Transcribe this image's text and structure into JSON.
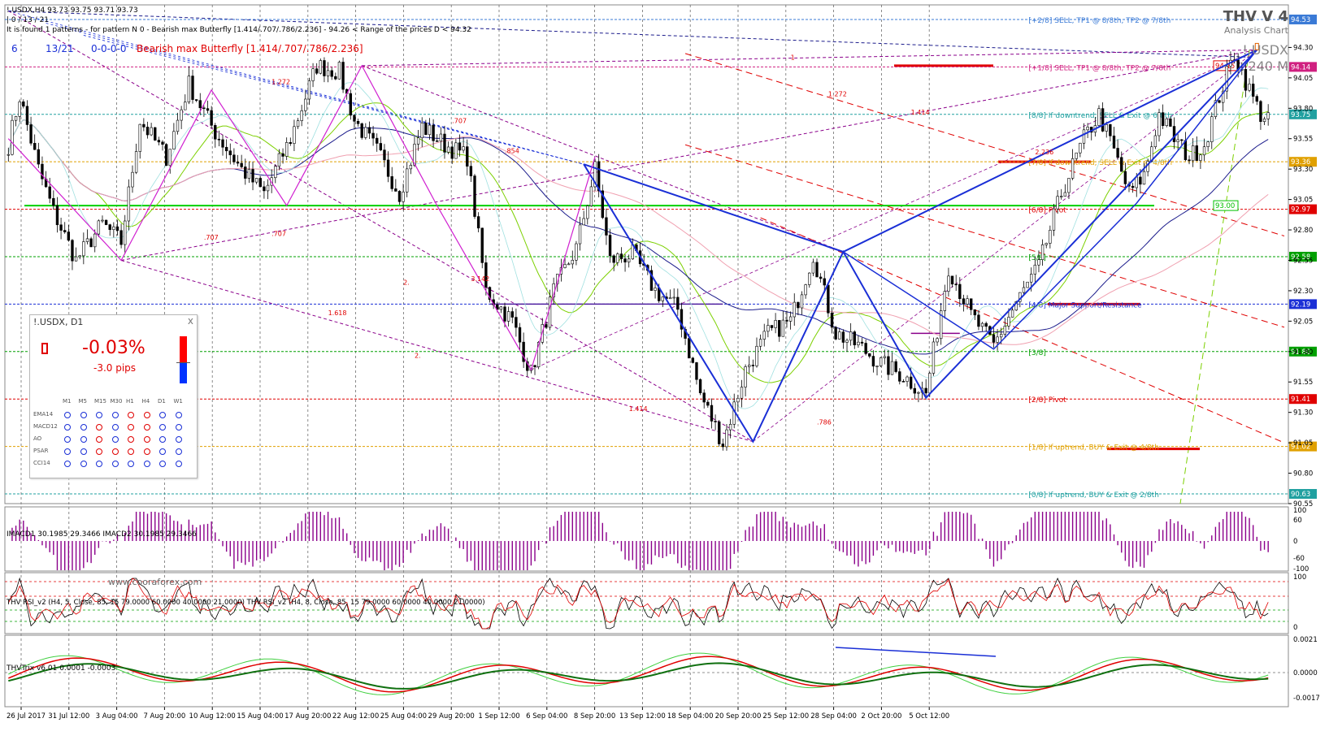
{
  "colors": {
    "grid": "#6e6e6e",
    "candle": "#000000",
    "fib_blue": "#1a2fd6",
    "green": "#00d000",
    "purple_ma": "#1c1c8c",
    "red": "#e00000",
    "pink": "#e070a0",
    "orange": "#e0a000",
    "teal": "#20a0a0",
    "macd": "#8b008b"
  },
  "header": {
    "line1": "!.USDX,H4  93.73 93.75 93.71 93.73",
    "line2": " | 0 / 13 / 21",
    "line3": "It is found 1 patterns  -  for pattern N 0 - Bearish max Butterfly [1.414/.707/.786/2.236] - 94.26 < Range of the prices D < 94.32",
    "line4_a": "6",
    "line4_b": "13/21",
    "line4_c": "0-0-0-0",
    "line4_d": "Bearish max Butterfly [1.414/.707/.786/2.236]"
  },
  "branding": {
    "title": "THV V 4",
    "subtitle": "Analysis Chart",
    "symbol": "!.USDX",
    "timeframe": "240 M",
    "watermark": "www.cooraforex.com"
  },
  "chart_data": {
    "type": "candlestick",
    "symbol": "!.USDX",
    "timeframe": "H4",
    "ylim": [
      90.55,
      94.65
    ],
    "y_ticks": [
      94.3,
      94.05,
      93.8,
      93.55,
      93.3,
      93.05,
      92.8,
      92.55,
      92.3,
      92.05,
      91.8,
      91.55,
      91.3,
      91.05,
      90.8,
      90.55
    ],
    "x_tick_labels": [
      "26 Jul 2017",
      "31 Jul 12:00",
      "3 Aug 04:00",
      "7 Aug 20:00",
      "10 Aug 12:00",
      "15 Aug 04:00",
      "17 Aug 20:00",
      "22 Aug 12:00",
      "25 Aug 04:00",
      "29 Aug 20:00",
      "1 Sep 12:00",
      "6 Sep 04:00",
      "8 Sep 20:00",
      "13 Sep 12:00",
      "18 Sep 04:00",
      "20 Sep 20:00",
      "25 Sep 12:00",
      "28 Sep 04:00",
      "2 Oct 20:00",
      "5 Oct 12:00"
    ],
    "price_path": [
      [
        0,
        93.5
      ],
      [
        3,
        93.9
      ],
      [
        8,
        93.3
      ],
      [
        12,
        92.95
      ],
      [
        18,
        92.55
      ],
      [
        25,
        92.85
      ],
      [
        30,
        92.7
      ],
      [
        35,
        93.7
      ],
      [
        42,
        93.4
      ],
      [
        48,
        94.0
      ],
      [
        55,
        93.6
      ],
      [
        62,
        93.3
      ],
      [
        68,
        93.1
      ],
      [
        75,
        93.55
      ],
      [
        82,
        94.15
      ],
      [
        88,
        94.1
      ],
      [
        92,
        93.7
      ],
      [
        98,
        93.45
      ],
      [
        104,
        93.1
      ],
      [
        110,
        93.65
      ],
      [
        116,
        93.5
      ],
      [
        122,
        93.4
      ],
      [
        127,
        92.3
      ],
      [
        134,
        92.05
      ],
      [
        139,
        91.62
      ],
      [
        145,
        92.3
      ],
      [
        151,
        92.65
      ],
      [
        156,
        93.3
      ],
      [
        160,
        92.55
      ],
      [
        166,
        92.6
      ],
      [
        172,
        92.3
      ],
      [
        178,
        92.15
      ],
      [
        184,
        91.45
      ],
      [
        190,
        91.05
      ],
      [
        196,
        91.65
      ],
      [
        202,
        91.95
      ],
      [
        208,
        92.05
      ],
      [
        214,
        92.6
      ],
      [
        220,
        91.95
      ],
      [
        226,
        91.85
      ],
      [
        232,
        91.7
      ],
      [
        238,
        91.6
      ],
      [
        244,
        91.45
      ],
      [
        250,
        92.5
      ],
      [
        256,
        92.1
      ],
      [
        262,
        91.85
      ],
      [
        268,
        92.2
      ],
      [
        274,
        92.5
      ],
      [
        280,
        93.1
      ],
      [
        286,
        93.55
      ],
      [
        290,
        93.75
      ],
      [
        294,
        93.45
      ],
      [
        298,
        93.1
      ],
      [
        302,
        93.25
      ],
      [
        306,
        93.75
      ],
      [
        310,
        93.55
      ],
      [
        314,
        93.4
      ],
      [
        318,
        93.5
      ],
      [
        322,
        93.9
      ],
      [
        326,
        94.25
      ],
      [
        330,
        93.95
      ],
      [
        333,
        93.75
      ],
      [
        335,
        93.73
      ]
    ],
    "pattern": {
      "name": "Bearish max Butterfly [1.414/.707/.786/2.236]",
      "points": [
        [
          153,
          93.34
        ],
        [
          198,
          91.06
        ],
        [
          222,
          92.62
        ],
        [
          244,
          91.42
        ],
        [
          332,
          94.28
        ]
      ],
      "inner_points": [
        [
          222,
          92.62
        ],
        [
          262,
          91.82
        ],
        [
          300,
          93.02
        ],
        [
          332,
          94.28
        ]
      ]
    },
    "earlier_pattern": [
      [
        0,
        93.55
      ],
      [
        30,
        92.55
      ],
      [
        54,
        93.95
      ],
      [
        74,
        93.0
      ],
      [
        94,
        94.15
      ],
      [
        114,
        93.0
      ],
      [
        139,
        91.65
      ],
      [
        156,
        93.4
      ]
    ],
    "fib_ratio_labels": [
      {
        "text": "1.272",
        "i": 70,
        "p": 94.0
      },
      {
        "text": ".707",
        "i": 118,
        "p": 93.68
      },
      {
        "text": ".854",
        "i": 132,
        "p": 93.43
      },
      {
        "text": ".707",
        "i": 52,
        "p": 92.72
      },
      {
        "text": ".707",
        "i": 70,
        "p": 92.75
      },
      {
        "text": "2.",
        "i": 105,
        "p": 92.35
      },
      {
        "text": "3.142",
        "i": 123,
        "p": 92.38
      },
      {
        "text": "1.618",
        "i": 85,
        "p": 92.1
      },
      {
        "text": "2.",
        "i": 108,
        "p": 91.75
      },
      {
        "text": "1.414",
        "i": 165,
        "p": 91.31
      },
      {
        "text": ".786",
        "i": 215,
        "p": 91.2
      },
      {
        "text": "1.272",
        "i": 218,
        "p": 93.9
      },
      {
        "text": "1.414",
        "i": 240,
        "p": 93.75
      },
      {
        "text": "2.236",
        "i": 273,
        "p": 93.42
      },
      {
        "text": "1",
        "i": 208,
        "p": 94.2
      }
    ],
    "murrey_levels": [
      {
        "price": 94.53,
        "label": "[+2/8] SELL, TP1 @ 8/8th, TP2 @ 7/8th",
        "color": "#3a7ad6",
        "tag": "94.53"
      },
      {
        "price": 94.14,
        "label": "[+1/8] SELL, TP1 @ 8/8th, TP2 @ 7/8th",
        "color": "#d02080",
        "tag": "94.14"
      },
      {
        "price": 93.75,
        "label": "[8/8] If downtrend, SELL & Exit @ 6/8th",
        "color": "#20a0a0",
        "tag": "93.75"
      },
      {
        "price": 93.36,
        "label": "[7/8] If downtrend, SELL & Exit @ 4/8th",
        "color": "#e0a000",
        "tag": "93.36"
      },
      {
        "price": 92.97,
        "label": "[6/8] Pivot",
        "color": "#e00000",
        "tag": "92.97"
      },
      {
        "price": 92.58,
        "label": "[5/8]",
        "color": "#00a000",
        "tag": "92.58"
      },
      {
        "price": 92.19,
        "label": "[4/8] Major Support/Resistance",
        "color": "#1a2fd6",
        "tag": "92.19"
      },
      {
        "price": 91.8,
        "label": "[3/8]",
        "color": "#00a000",
        "tag": "91.80"
      },
      {
        "price": 91.41,
        "label": "[2/8] Pivot",
        "color": "#e00000",
        "tag": "91.41"
      },
      {
        "price": 91.02,
        "label": "[1/8] If uptrend, BUY & Exit @ 4/8th",
        "color": "#e0a000",
        "tag": "91.02"
      },
      {
        "price": 90.63,
        "label": "[0/8] If uptrend, BUY & Exit @ 2/8th",
        "color": "#20a0a0",
        "tag": "90.63"
      }
    ],
    "price_tags": [
      {
        "price": 94.15,
        "text": "94.15",
        "color": "#e00000",
        "box": true
      },
      {
        "price": 93.0,
        "text": "93.00",
        "color": "#00c000",
        "box": true
      }
    ],
    "support_line": 93.0,
    "major_sr_line": 92.19,
    "macd": {
      "label": "IMACD1 30.1985 29.3466  IMACD2 30.1985 29.3466",
      "ticks": [
        "100",
        "60",
        "0",
        "-60",
        "-100"
      ]
    },
    "rsi": {
      "label": "THV RSI_v2  (H4,  5,  Close,  85,  15 79.0000 60.0000 40.0000 21.0000)  THV RSI_v2  (H4,  8,  Close,  85,  15 79.0000 60.0000 40.0000 21.0000)",
      "ticks": [
        "100",
        "0"
      ]
    },
    "trix": {
      "label": "THVTrix v6.01 0.0001 -0.0003",
      "ticks": [
        "0.0021",
        "0.0000",
        "-0.0017"
      ]
    }
  },
  "indicator_panel": {
    "title": "!.USDX,  D1",
    "close": "x",
    "percent": "-0.03%",
    "pips": "-3.0 pips",
    "timeframes": [
      "M1",
      "M5",
      "M15",
      "M30",
      "H1",
      "H4",
      "D1",
      "W1"
    ],
    "rows": [
      {
        "name": "EMA14",
        "dots": [
          "b",
          "b",
          "b",
          "b",
          "r",
          "r",
          "b",
          "b"
        ]
      },
      {
        "name": "MACD12",
        "dots": [
          "b",
          "b",
          "r",
          "b",
          "r",
          "r",
          "b",
          "b"
        ]
      },
      {
        "name": "AO",
        "dots": [
          "b",
          "b",
          "r",
          "b",
          "r",
          "r",
          "b",
          "b"
        ]
      },
      {
        "name": "PSAR",
        "dots": [
          "b",
          "b",
          "r",
          "r",
          "r",
          "r",
          "b",
          "b"
        ]
      },
      {
        "name": "CCI14",
        "dots": [
          "b",
          "b",
          "b",
          "b",
          "b",
          "b",
          "b",
          "b"
        ]
      }
    ]
  }
}
